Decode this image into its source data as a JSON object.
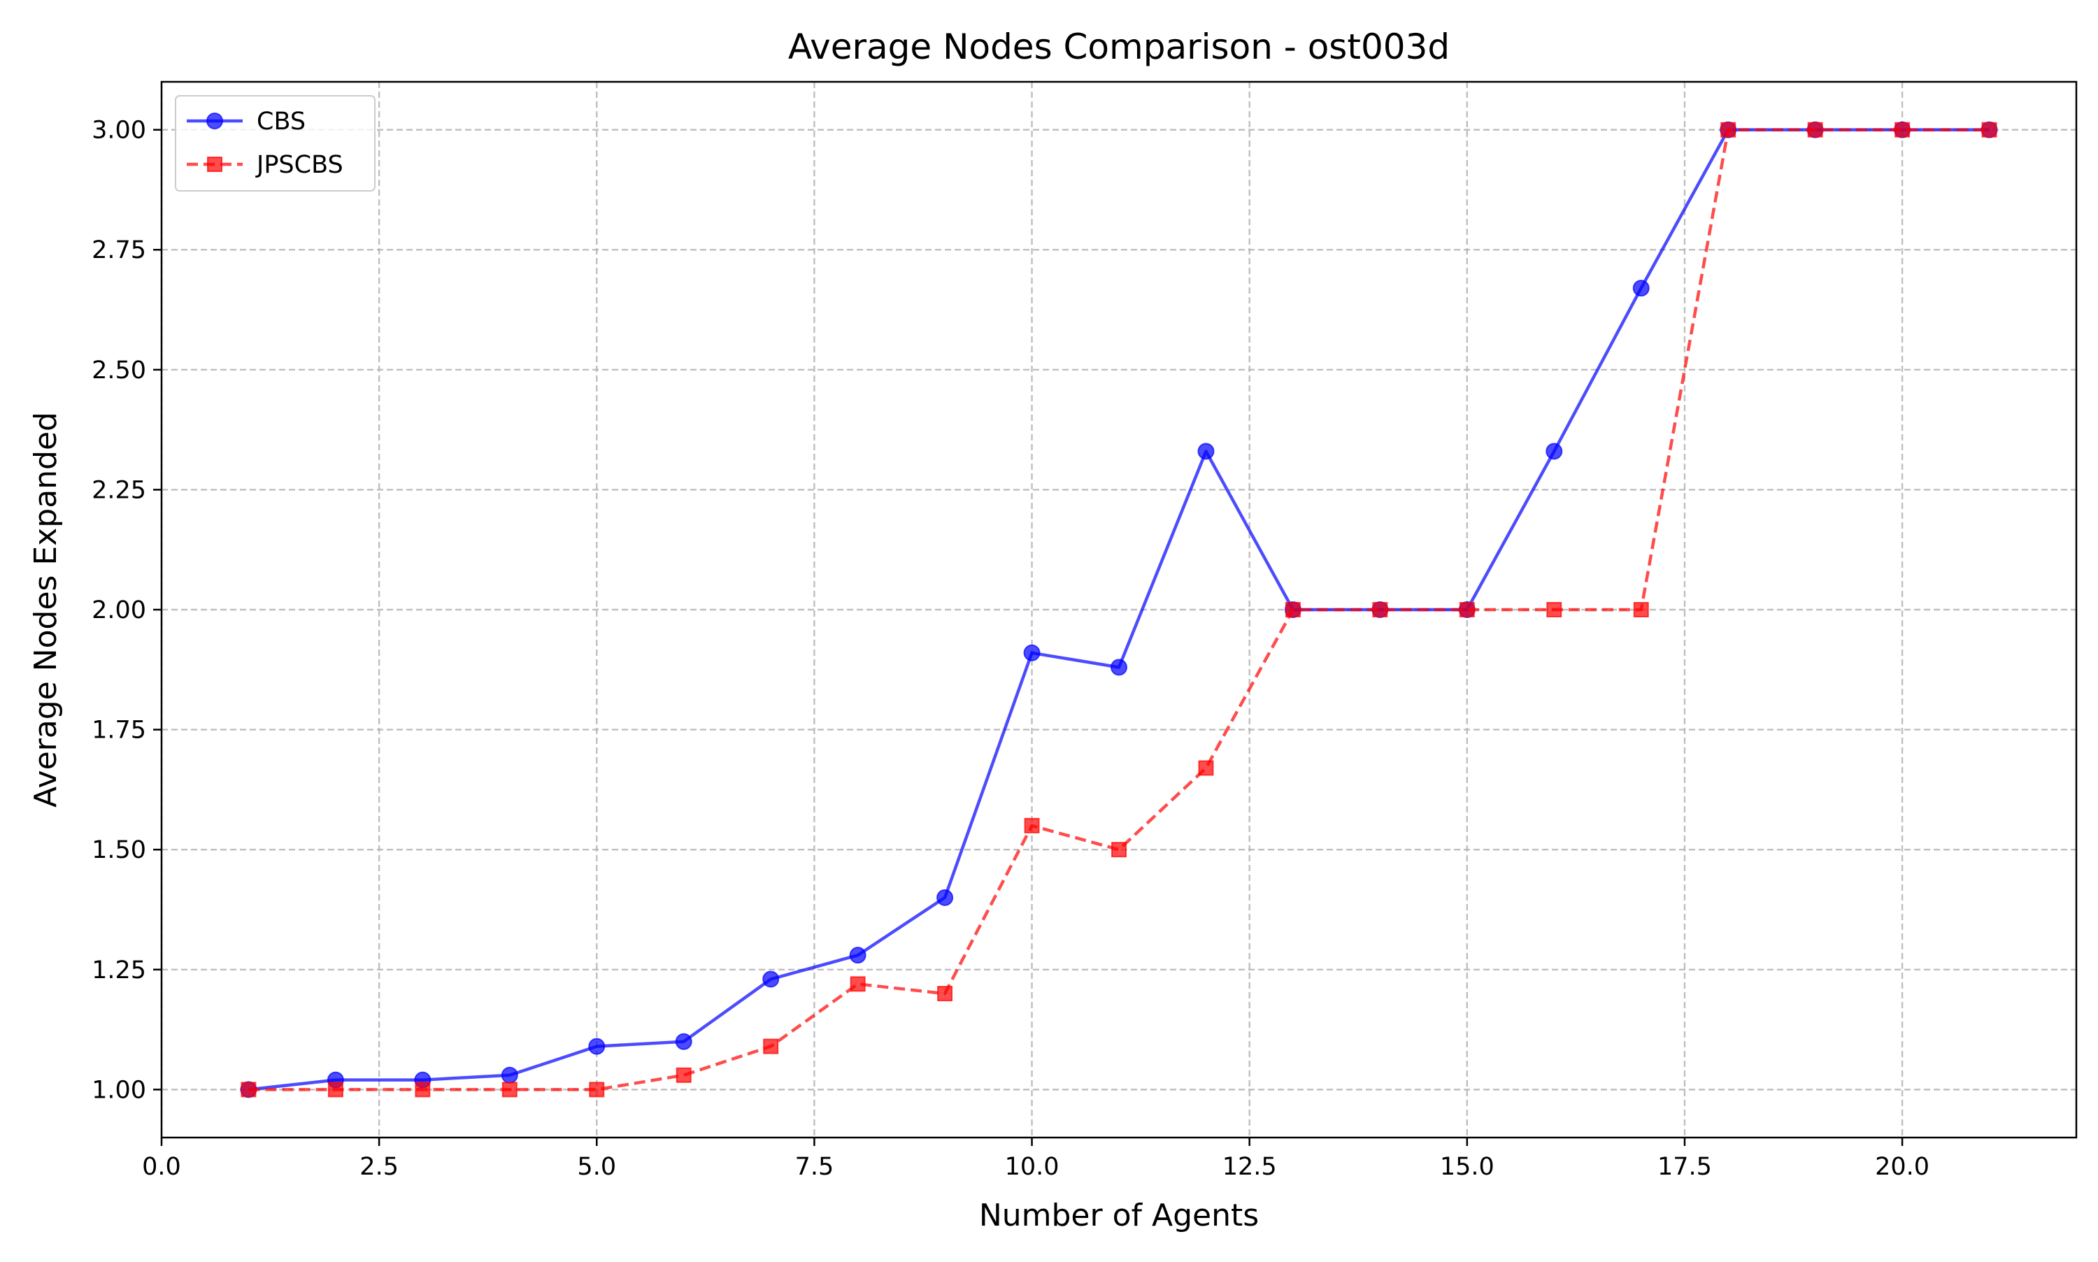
{
  "chart_data": {
    "type": "line",
    "title": "Average Nodes Comparison - ost003d",
    "xlabel": "Number of Agents",
    "ylabel": "Average Nodes Expanded",
    "xlim": [
      0,
      22
    ],
    "ylim": [
      0.9,
      3.1
    ],
    "xticks": [
      0.0,
      2.5,
      5.0,
      7.5,
      10.0,
      12.5,
      15.0,
      17.5,
      20.0
    ],
    "xtick_labels": [
      "0.0",
      "2.5",
      "5.0",
      "7.5",
      "10.0",
      "12.5",
      "15.0",
      "17.5",
      "20.0"
    ],
    "yticks": [
      1.0,
      1.25,
      1.5,
      1.75,
      2.0,
      2.25,
      2.5,
      2.75,
      3.0
    ],
    "ytick_labels": [
      "1.00",
      "1.25",
      "1.50",
      "1.75",
      "2.00",
      "2.25",
      "2.50",
      "2.75",
      "3.00"
    ],
    "grid": true,
    "legend_position": "top-left",
    "x": [
      1,
      2,
      3,
      4,
      5,
      6,
      7,
      8,
      9,
      10,
      11,
      12,
      13,
      14,
      15,
      16,
      17,
      18,
      19,
      20,
      21
    ],
    "series": [
      {
        "name": "CBS",
        "color": "#0000ff",
        "line_style": "solid",
        "marker": "circle",
        "values": [
          1.0,
          1.02,
          1.02,
          1.03,
          1.09,
          1.1,
          1.23,
          1.28,
          1.4,
          1.91,
          1.88,
          2.33,
          2.0,
          2.0,
          2.0,
          2.33,
          2.67,
          3.0,
          3.0,
          3.0,
          3.0
        ]
      },
      {
        "name": "JPSCBS",
        "color": "#ff0000",
        "line_style": "dashed",
        "marker": "square",
        "values": [
          1.0,
          1.0,
          1.0,
          1.0,
          1.0,
          1.03,
          1.09,
          1.22,
          1.2,
          1.55,
          1.5,
          1.67,
          2.0,
          2.0,
          2.0,
          2.0,
          2.0,
          3.0,
          3.0,
          3.0,
          3.0
        ]
      }
    ]
  }
}
